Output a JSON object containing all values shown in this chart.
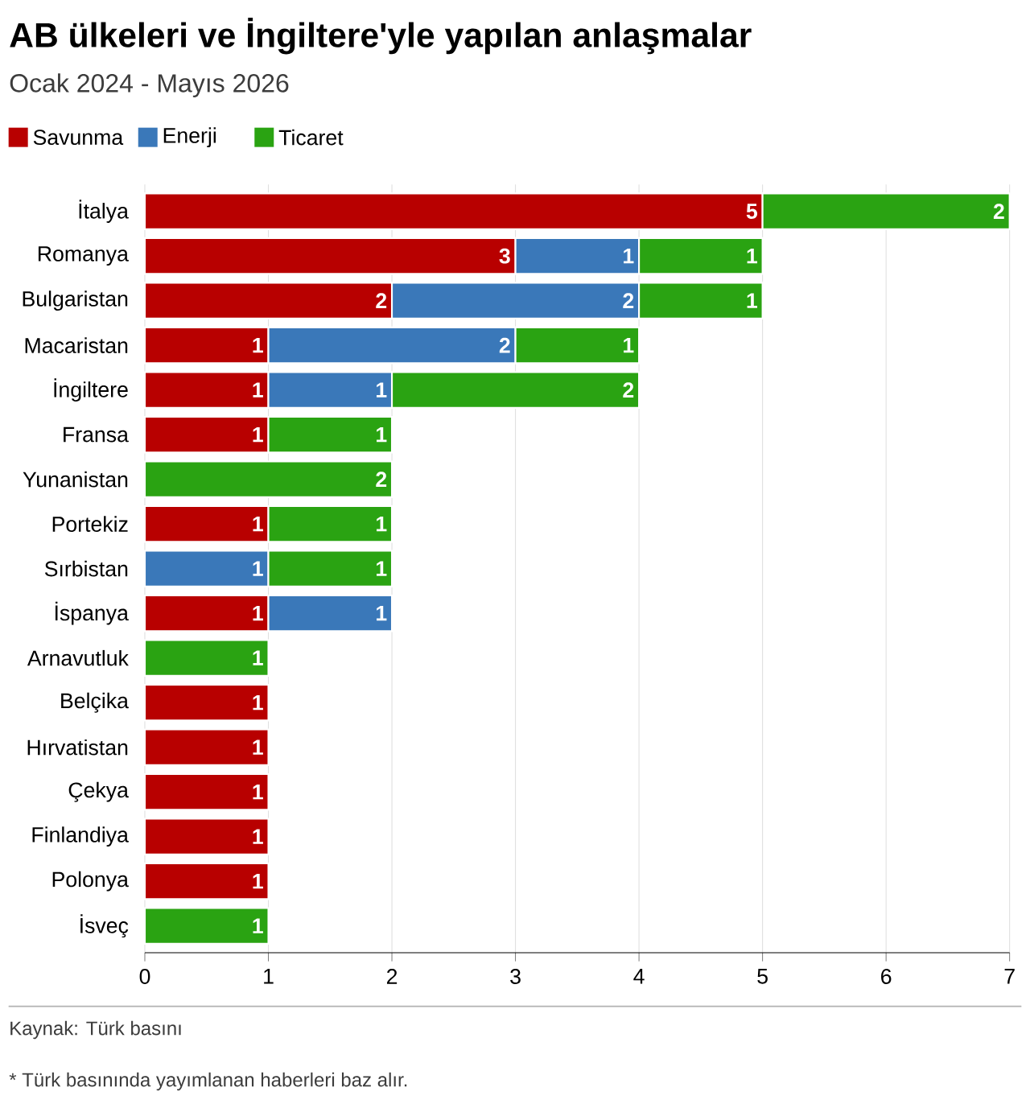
{
  "chart_data": {
    "type": "bar",
    "orientation": "horizontal",
    "stacked": true,
    "title": "AB ülkeleri ve İngiltere'yle yapılan anlaşmalar",
    "subtitle": "Ocak 2024 - Mayıs 2026",
    "categories": [
      "İtalya",
      "Romanya",
      "Bulgaristan",
      "Macaristan",
      "İngiltere",
      "Fransa",
      "Yunanistan",
      "Portekiz",
      "Sırbistan",
      "İspanya",
      "Arnavutluk",
      "Belçika",
      "Hırvatistan",
      "Çekya",
      "Finlandiya",
      "Polonya",
      "İsveç"
    ],
    "series": [
      {
        "name": "Savunma",
        "color": "#b80000",
        "values": [
          5,
          3,
          2,
          1,
          1,
          1,
          null,
          1,
          null,
          1,
          null,
          1,
          1,
          1,
          1,
          1,
          null
        ],
        "value_labels": [
          "5",
          "3",
          "2",
          "1",
          "1",
          "1",
          null,
          "1",
          null,
          "1",
          null,
          "1",
          "1",
          "1",
          "1",
          "1",
          null
        ]
      },
      {
        "name": "Enerji",
        "color": "#3a78b9",
        "values": [
          null,
          1,
          2,
          2,
          1,
          null,
          null,
          null,
          1,
          1,
          null,
          null,
          null,
          null,
          null,
          null,
          null
        ],
        "value_labels": [
          null,
          "1",
          "2",
          "2",
          "1",
          null,
          null,
          null,
          "1",
          "1",
          null,
          null,
          null,
          null,
          null,
          null,
          null
        ]
      },
      {
        "name": "Ticaret",
        "color": "#2aa312",
        "values": [
          2,
          1,
          1,
          1,
          2,
          1,
          2,
          1,
          1,
          null,
          1,
          null,
          null,
          null,
          null,
          null,
          1
        ],
        "value_labels": [
          "2",
          "1",
          "1",
          "1",
          "2",
          "1",
          "2",
          "1",
          "1",
          null,
          "1",
          null,
          null,
          null,
          null,
          null,
          "1"
        ]
      }
    ],
    "xlim": [
      0,
      7
    ],
    "xticks": [
      0,
      1,
      2,
      3,
      4,
      5,
      6,
      7
    ],
    "grid": "x",
    "legend": "top left",
    "annotations": [
      "Kaynak: Türk basını",
      "* Türk basınında yayımlanan haberleri baz alır."
    ]
  }
}
